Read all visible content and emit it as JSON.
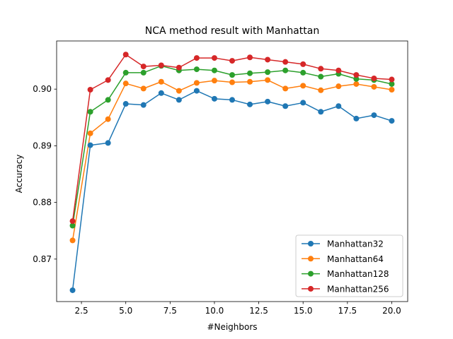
{
  "chart_data": {
    "type": "line",
    "title": "NCA method result with Manhattan",
    "xlabel": "#Neighbors",
    "ylabel": "Accuracy",
    "xlim": [
      1.1,
      20.9
    ],
    "ylim": [
      0.8625,
      0.9085
    ],
    "xticks": [
      2.5,
      5.0,
      7.5,
      10.0,
      12.5,
      15.0,
      17.5,
      20.0
    ],
    "xtick_labels": [
      "2.5",
      "5.0",
      "7.5",
      "10.0",
      "12.5",
      "15.0",
      "17.5",
      "20.0"
    ],
    "yticks": [
      0.87,
      0.88,
      0.89,
      0.9
    ],
    "ytick_labels": [
      "0.87",
      "0.88",
      "0.89",
      "0.90"
    ],
    "grid": false,
    "legend_position": "lower-right",
    "x": [
      2,
      3,
      4,
      5,
      6,
      7,
      8,
      9,
      10,
      11,
      12,
      13,
      14,
      15,
      16,
      17,
      18,
      19,
      20
    ],
    "series": [
      {
        "name": "Manhattan32",
        "color": "#1f77b4",
        "values": [
          0.8645,
          0.8901,
          0.8905,
          0.8974,
          0.8972,
          0.8993,
          0.8981,
          0.8997,
          0.8983,
          0.8981,
          0.8973,
          0.8978,
          0.897,
          0.8976,
          0.896,
          0.897,
          0.8948,
          0.8954,
          0.8944
        ]
      },
      {
        "name": "Manhattan64",
        "color": "#ff7f0e",
        "values": [
          0.8733,
          0.8922,
          0.8947,
          0.901,
          0.9001,
          0.9013,
          0.8997,
          0.9011,
          0.9015,
          0.9012,
          0.9013,
          0.9016,
          0.9001,
          0.9006,
          0.8998,
          0.9005,
          0.9009,
          0.9004,
          0.8999
        ]
      },
      {
        "name": "Manhattan128",
        "color": "#2ca02c",
        "values": [
          0.8759,
          0.896,
          0.8981,
          0.9029,
          0.9029,
          0.9041,
          0.9033,
          0.9035,
          0.9033,
          0.9025,
          0.9028,
          0.903,
          0.9033,
          0.9029,
          0.9022,
          0.9027,
          0.9018,
          0.9016,
          0.9009
        ]
      },
      {
        "name": "Manhattan256",
        "color": "#d62728",
        "values": [
          0.8767,
          0.8999,
          0.9016,
          0.9061,
          0.904,
          0.9042,
          0.9038,
          0.9055,
          0.9055,
          0.905,
          0.9056,
          0.9052,
          0.9048,
          0.9044,
          0.9036,
          0.9033,
          0.9025,
          0.9019,
          0.9017
        ]
      }
    ]
  }
}
